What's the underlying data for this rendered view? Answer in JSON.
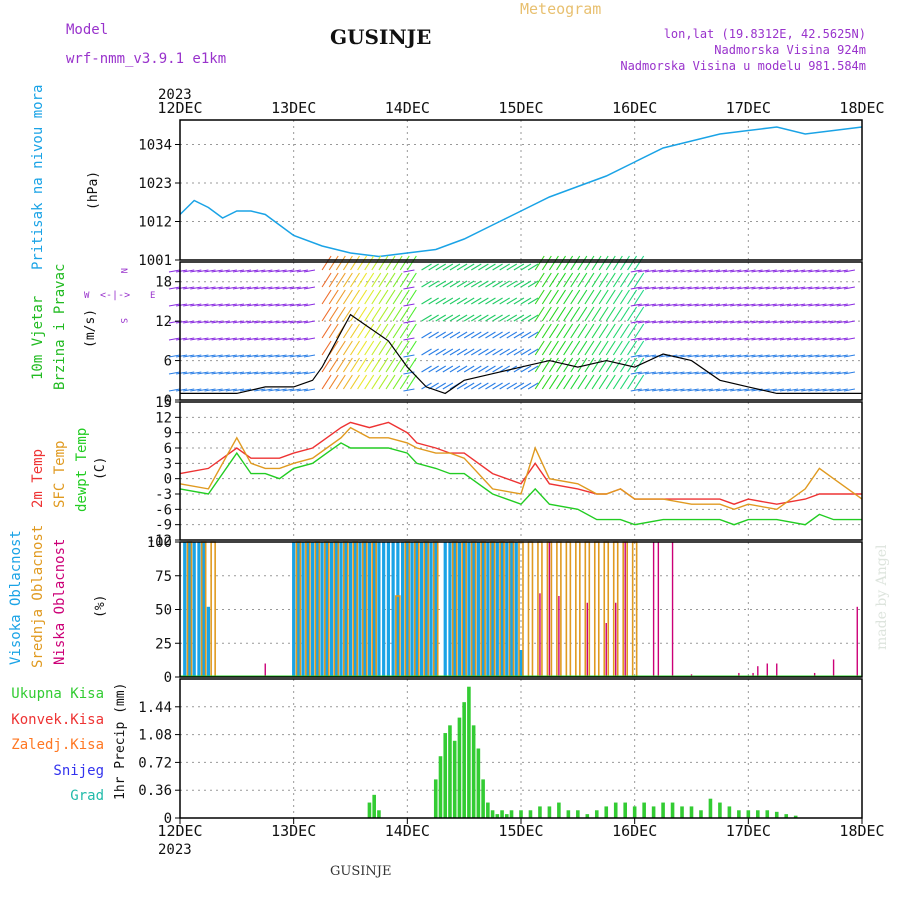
{
  "header": {
    "model_label": "Model",
    "model_name": "wrf-nmm_v3.9.1 e1km",
    "station": "GUSINJE",
    "meteogram": "Meteogram",
    "lonlat": "lon,lat (19.8312E, 42.5625N)",
    "elevation": "Nadmorska Visina 924m",
    "model_elevation": "Nadmorska Visina u modelu 981.584m",
    "footer_station": "GUSINJE",
    "made_by": "made by Angel"
  },
  "time_axis": {
    "year": "2023",
    "labels": [
      "12DEC",
      "13DEC",
      "14DEC",
      "15DEC",
      "16DEC",
      "17DEC",
      "18DEC"
    ]
  },
  "colors": {
    "pressure": "#1aa3e6",
    "wind_label": "#22bb22",
    "t2m": "#ee3333",
    "sfc": "#e09a20",
    "dew": "#22cc22",
    "high_cloud": "#1aa3e6",
    "mid_cloud": "#e09a20",
    "low_cloud": "#cc0077",
    "precip_total": "#33cc33",
    "precip_conv": "#ee3333",
    "precip_frz": "#ff7722",
    "precip_snow": "#3333ee",
    "precip_hail": "#22bbaa",
    "wind_dir": "#9933cc"
  },
  "panels": {
    "pressure": {
      "label1": "Pritisak na nivou mora",
      "unit": "(hPa)"
    },
    "wind": {
      "label1": "10m Vjetar",
      "label2": "Brzina i Pravac",
      "unit": "(m/s)",
      "dir_n": "N",
      "dir_s": "S",
      "dir_w": "W",
      "dir_e": "E",
      "dir_compass": "<-|->"
    },
    "temp": {
      "label1": "2m Temp",
      "label2": "SFC Temp",
      "label3": "dewpt Temp",
      "unit": "(C)"
    },
    "cloud": {
      "label1": "Visoka Oblacnost",
      "label2": "Srednja Oblacnost",
      "label3": "Niska Oblacnost",
      "unit": "(%)"
    },
    "precip": {
      "unit": "1hr Precip (mm)",
      "legend": [
        "Ukupna Kisa",
        "Konvek.Kisa",
        "Zaledj.Kisa",
        "Snijeg",
        "Grad"
      ]
    }
  },
  "chart_data": [
    {
      "type": "line",
      "name": "pressure",
      "x": [
        0,
        3,
        6,
        9,
        12,
        15,
        18,
        21,
        24,
        30,
        36,
        42,
        48,
        54,
        60,
        66,
        72,
        78,
        84,
        90,
        96,
        102,
        108,
        114,
        120,
        126,
        132,
        138,
        144
      ],
      "y": [
        1014,
        1018,
        1016,
        1013,
        1015,
        1015,
        1014,
        1011,
        1008,
        1005,
        1003,
        1002,
        1003,
        1004,
        1007,
        1011,
        1015,
        1019,
        1022,
        1025,
        1029,
        1033,
        1035,
        1037,
        1038,
        1039,
        1037,
        1038,
        1039
      ],
      "yticks": [
        1001,
        1012,
        1023,
        1034
      ],
      "ylim": [
        1001,
        1041
      ]
    },
    {
      "type": "line",
      "name": "wind_speed",
      "x": [
        0,
        6,
        12,
        18,
        24,
        28,
        30,
        33,
        36,
        40,
        44,
        48,
        52,
        56,
        60,
        66,
        72,
        78,
        84,
        90,
        96,
        102,
        108,
        114,
        120,
        126,
        132,
        138,
        144
      ],
      "y": [
        1,
        1,
        1,
        2,
        2,
        3,
        5,
        9,
        13,
        11,
        9,
        5,
        2,
        1,
        3,
        4,
        5,
        6,
        5,
        6,
        5,
        7,
        6,
        3,
        2,
        1,
        1,
        1,
        1
      ],
      "yticks": [
        0,
        6,
        12,
        18
      ],
      "ylim": [
        0,
        21
      ]
    },
    {
      "type": "line",
      "x": [
        0,
        6,
        12,
        15,
        18,
        21,
        24,
        28,
        31,
        34,
        36,
        40,
        44,
        48,
        50,
        54,
        57,
        60,
        66,
        72,
        75,
        78,
        84,
        88,
        90,
        93,
        96,
        102,
        108,
        111,
        114,
        117,
        120,
        126,
        132,
        135,
        138,
        144
      ],
      "series": [
        {
          "name": "2m Temp",
          "values": [
            1,
            2,
            6,
            4,
            4,
            4,
            5,
            6,
            8,
            10,
            11,
            10,
            11,
            9,
            7,
            6,
            5,
            5,
            1,
            -1,
            3,
            -1,
            -2,
            -3,
            -3,
            -2,
            -4,
            -4,
            -4,
            -4,
            -4,
            -5,
            -4,
            -5,
            -4,
            -3,
            -3,
            -3
          ]
        },
        {
          "name": "SFC Temp",
          "values": [
            -1,
            -2,
            8,
            3,
            2,
            2,
            3,
            4,
            6,
            8,
            10,
            8,
            8,
            7,
            6,
            5,
            5,
            4,
            -2,
            -3,
            6,
            0,
            -1,
            -3,
            -3,
            -2,
            -4,
            -4,
            -5,
            -5,
            -5,
            -6,
            -5,
            -6,
            -2,
            2,
            0,
            -4
          ]
        },
        {
          "name": "dewpt Temp",
          "values": [
            -2,
            -3,
            5,
            1,
            1,
            0,
            2,
            3,
            5,
            7,
            6,
            6,
            6,
            5,
            3,
            2,
            1,
            1,
            -3,
            -5,
            -2,
            -5,
            -6,
            -8,
            -8,
            -8,
            -9,
            -8,
            -8,
            -8,
            -8,
            -9,
            -8,
            -8,
            -9,
            -7,
            -8,
            -8
          ]
        }
      ],
      "yticks": [
        -12,
        -9,
        -6,
        -3,
        0,
        3,
        6,
        9,
        12,
        15
      ],
      "ylim": [
        -12,
        15
      ]
    },
    {
      "type": "bar",
      "series": [
        {
          "name": "Visoka Oblacnost",
          "hours": [
            1,
            2,
            3,
            4,
            5,
            6,
            24,
            25,
            26,
            27,
            28,
            29,
            30,
            31,
            32,
            33,
            34,
            35,
            36,
            37,
            38,
            39,
            40,
            41,
            42,
            43,
            44,
            45,
            46,
            47,
            48,
            49,
            50,
            51,
            52,
            53,
            54,
            56,
            57,
            58,
            59,
            60,
            61,
            62,
            63,
            64,
            65,
            66,
            67,
            68,
            69,
            70,
            71,
            72
          ],
          "values": [
            100,
            100,
            100,
            100,
            100,
            52,
            100,
            100,
            100,
            100,
            100,
            100,
            100,
            100,
            100,
            100,
            100,
            100,
            100,
            100,
            100,
            100,
            100,
            100,
            100,
            100,
            100,
            100,
            100,
            100,
            100,
            100,
            100,
            100,
            100,
            100,
            100,
            100,
            100,
            100,
            100,
            100,
            100,
            100,
            100,
            100,
            100,
            100,
            100,
            100,
            100,
            100,
            100,
            20
          ]
        },
        {
          "name": "Srednja Oblacnost",
          "hours": [
            2,
            5,
            7,
            25,
            27,
            29,
            31,
            33,
            35,
            37,
            39,
            41,
            46,
            48,
            50,
            52,
            54,
            58,
            60,
            62,
            64,
            66,
            68,
            70,
            72,
            74,
            76,
            78,
            80,
            82,
            84,
            86,
            88,
            90,
            92,
            94,
            96
          ],
          "values": [
            100,
            100,
            100,
            100,
            100,
            100,
            100,
            100,
            100,
            100,
            100,
            100,
            60,
            100,
            100,
            100,
            100,
            100,
            100,
            100,
            100,
            100,
            100,
            100,
            100,
            100,
            100,
            100,
            100,
            100,
            100,
            100,
            100,
            100,
            100,
            100,
            100
          ]
        },
        {
          "name": "Niska Oblacnost",
          "hours": [
            18,
            76,
            78,
            80,
            86,
            90,
            92,
            94,
            100,
            101,
            104,
            108,
            118,
            121,
            122,
            124,
            126,
            134,
            138,
            143
          ],
          "values": [
            10,
            62,
            100,
            60,
            55,
            40,
            55,
            100,
            100,
            100,
            100,
            2,
            3,
            3,
            8,
            10,
            10,
            3,
            13,
            52
          ]
        }
      ],
      "yticks": [
        0,
        25,
        50,
        75,
        100
      ],
      "ylim": [
        0,
        100
      ]
    },
    {
      "type": "bar",
      "name": "precip",
      "hours": [
        40,
        41,
        42,
        43,
        54,
        55,
        56,
        57,
        58,
        59,
        60,
        61,
        62,
        63,
        64,
        65,
        66,
        67,
        68,
        69,
        70,
        72,
        74,
        76,
        78,
        80,
        82,
        84,
        86,
        88,
        90,
        92,
        94,
        96,
        98,
        100,
        102,
        104,
        106,
        108,
        110,
        112,
        114,
        116,
        118,
        120,
        122,
        124,
        126,
        128,
        130
      ],
      "values": [
        0.2,
        0.3,
        0.1,
        0,
        0.5,
        0.8,
        1.1,
        1.2,
        1.0,
        1.3,
        1.5,
        1.7,
        1.2,
        0.9,
        0.5,
        0.2,
        0.1,
        0.05,
        0.1,
        0.05,
        0.1,
        0.1,
        0.1,
        0.15,
        0.15,
        0.2,
        0.1,
        0.1,
        0.05,
        0.1,
        0.15,
        0.2,
        0.2,
        0.15,
        0.2,
        0.15,
        0.2,
        0.2,
        0.15,
        0.15,
        0.1,
        0.25,
        0.2,
        0.15,
        0.1,
        0.1,
        0.1,
        0.1,
        0.08,
        0.05,
        0.03
      ],
      "yticks": [
        0,
        0.36,
        0.72,
        1.08,
        1.44
      ],
      "ylim": [
        0,
        1.8
      ]
    }
  ]
}
